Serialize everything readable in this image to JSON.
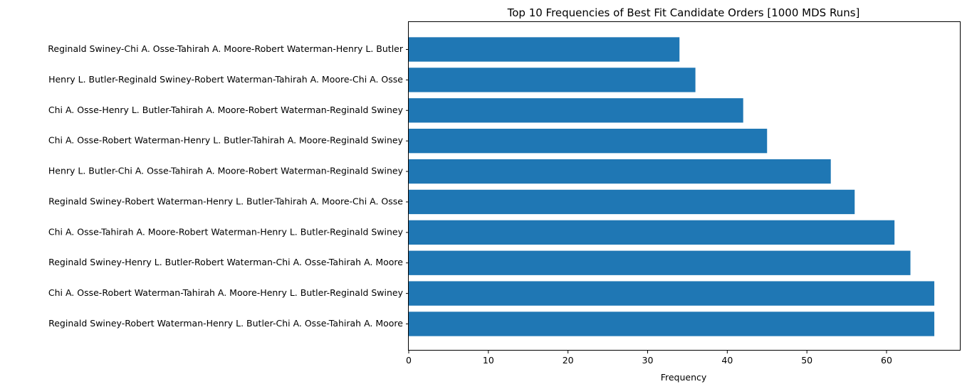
{
  "chart_data": {
    "type": "bar",
    "orientation": "horizontal",
    "title": "Top 10 Frequencies of Best Fit Candidate Orders [1000 MDS Runs]",
    "xlabel": "Frequency",
    "ylabel": "",
    "xlim": [
      0,
      69.3
    ],
    "xticks": [
      0,
      10,
      20,
      30,
      40,
      50,
      60
    ],
    "grid": false,
    "bar_color": "#1f77b4",
    "categories": [
      "Reginald Swiney-Robert Waterman-Henry L. Butler-Chi A. Osse-Tahirah A. Moore",
      "Chi A. Osse-Robert Waterman-Tahirah A. Moore-Henry L. Butler-Reginald Swiney",
      "Reginald Swiney-Henry L. Butler-Robert Waterman-Chi A. Osse-Tahirah A. Moore",
      "Chi A. Osse-Tahirah A. Moore-Robert Waterman-Henry L. Butler-Reginald Swiney",
      "Reginald Swiney-Robert Waterman-Henry L. Butler-Tahirah A. Moore-Chi A. Osse",
      "Henry L. Butler-Chi A. Osse-Tahirah A. Moore-Robert Waterman-Reginald Swiney",
      "Chi A. Osse-Robert Waterman-Henry L. Butler-Tahirah A. Moore-Reginald Swiney",
      "Chi A. Osse-Henry L. Butler-Tahirah A. Moore-Robert Waterman-Reginald Swiney",
      "Henry L. Butler-Reginald Swiney-Robert Waterman-Tahirah A. Moore-Chi A. Osse",
      "Reginald Swiney-Chi A. Osse-Tahirah A. Moore-Robert Waterman-Henry L. Butler"
    ],
    "values": [
      66,
      66,
      63,
      61,
      56,
      53,
      45,
      42,
      36,
      34
    ]
  }
}
